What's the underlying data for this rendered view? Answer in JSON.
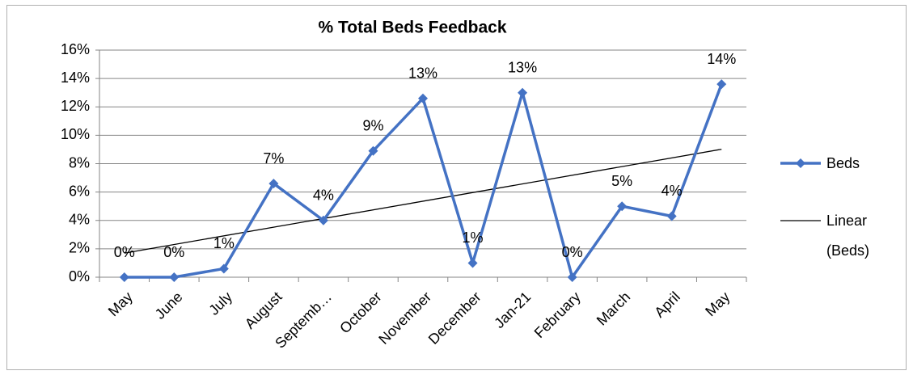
{
  "chart_data": {
    "type": "line",
    "title": "% Total Beds Feedback",
    "categories": [
      "May",
      "June",
      "July",
      "August",
      "Septemb…",
      "October",
      "November",
      "December",
      "Jan-21",
      "February",
      "March",
      "April",
      "May"
    ],
    "series": [
      {
        "name": "Beds",
        "color": "#4472c4",
        "values": [
          0,
          0,
          0.6,
          6.6,
          4.0,
          8.9,
          12.6,
          1.0,
          13.0,
          0,
          5.0,
          4.3,
          13.6
        ],
        "value_labels": [
          "0%",
          "0%",
          "1%",
          "7%",
          "4%",
          "9%",
          "13%",
          "1%",
          "13%",
          "0%",
          "5%",
          "4%",
          "14%"
        ]
      }
    ],
    "trendline": {
      "name": "Linear (Beds)",
      "color": "#000000"
    },
    "ylim": [
      0,
      16
    ],
    "yticks": [
      {
        "value": 0,
        "label": "0%"
      },
      {
        "value": 2,
        "label": "2%"
      },
      {
        "value": 4,
        "label": "4%"
      },
      {
        "value": 6,
        "label": "6%"
      },
      {
        "value": 8,
        "label": "8%"
      },
      {
        "value": 10,
        "label": "10%"
      },
      {
        "value": 12,
        "label": "12%"
      },
      {
        "value": 14,
        "label": "14%"
      },
      {
        "value": 16,
        "label": "16%"
      }
    ],
    "grid": true,
    "legend": "right"
  }
}
